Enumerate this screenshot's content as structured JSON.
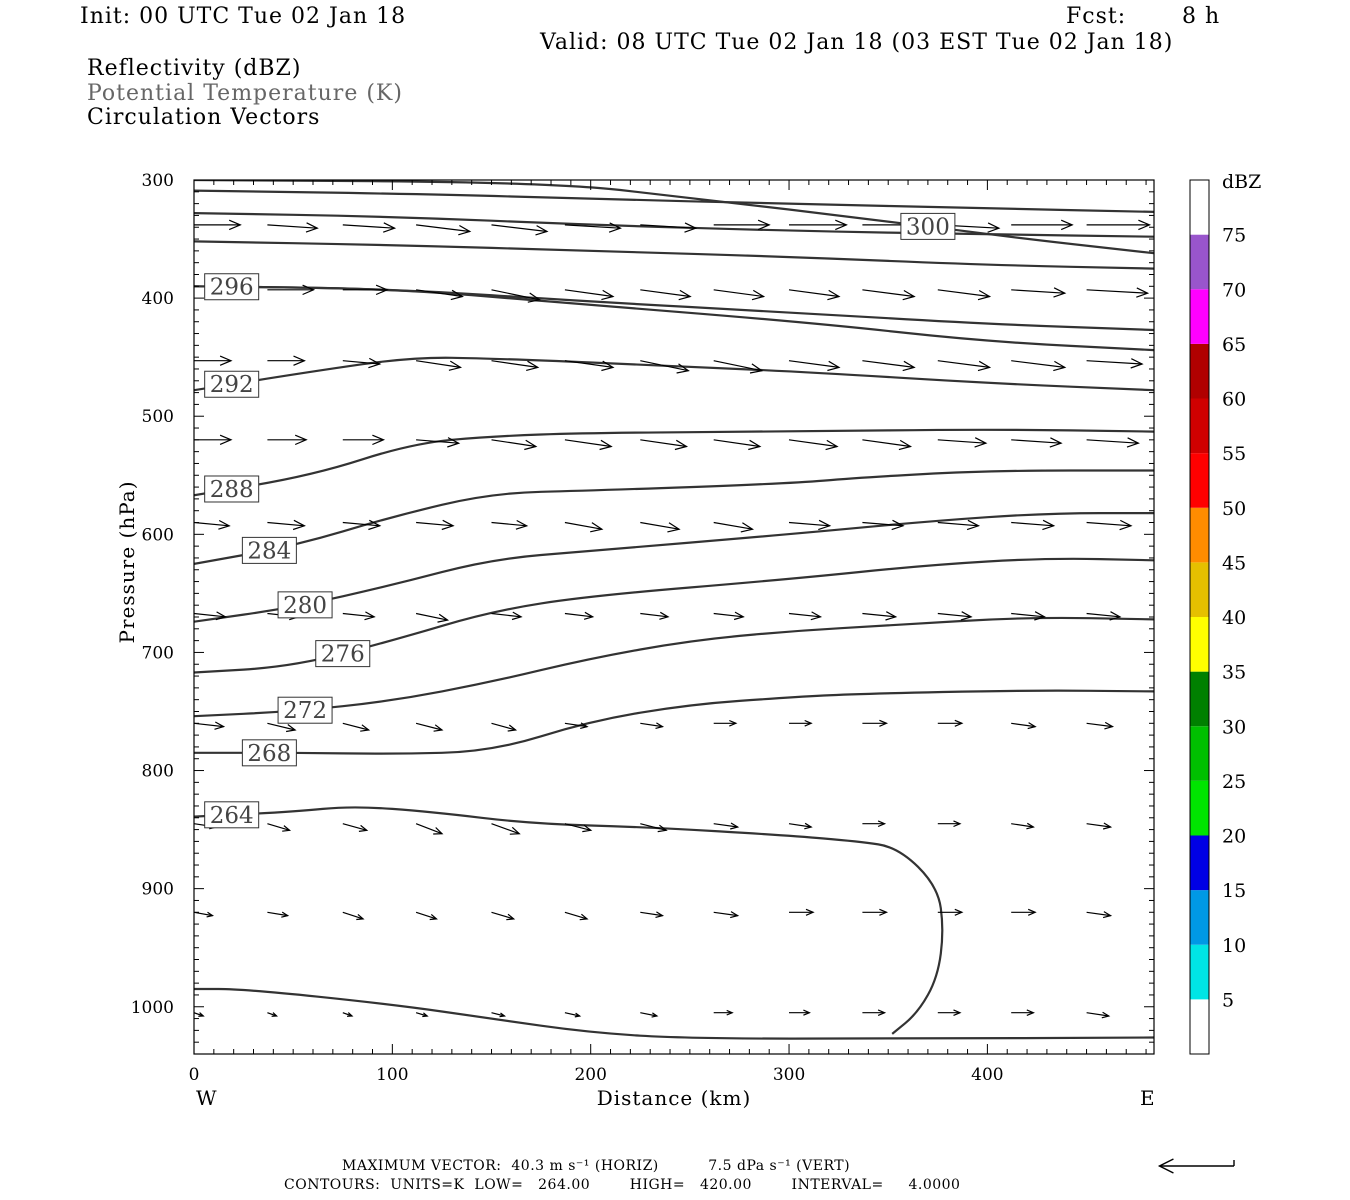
{
  "header": {
    "init": "Init: 00 UTC Tue 02 Jan 18",
    "fcst_label": "Fcst:",
    "fcst_value": "8 h",
    "valid": "Valid: 08 UTC Tue 02 Jan 18 (03 EST Tue 02 Jan 18)",
    "fields": [
      "Reflectivity (dBZ)",
      "Potential Temperature (K)",
      "Circulation Vectors"
    ]
  },
  "footer": {
    "max_vector": "MAXIMUM VECTOR:  40.3 m s⁻¹ (HORIZ)          7.5 dPa s⁻¹ (VERT)",
    "contours": "CONTOURS:  UNITS=K  LOW=   264.00        HIGH=   420.00        INTERVAL=     4.0000"
  },
  "colors": {
    "contour": "#333333",
    "arrow": "#000000",
    "axis": "#000000"
  },
  "chart_data": {
    "type": "contour_cross_section",
    "xlabel": "Distance (km)",
    "ylabel": "Pressure (hPa)",
    "xlim": [
      0,
      484
    ],
    "ylim": [
      1040,
      300
    ],
    "xticks": [
      "0",
      "100",
      "200",
      "300",
      "400"
    ],
    "xtick_values": [
      0,
      100,
      200,
      300,
      400
    ],
    "yticks": [
      "300",
      "400",
      "500",
      "600",
      "700",
      "800",
      "900",
      "1000"
    ],
    "ytick_values": [
      300,
      400,
      500,
      600,
      700,
      800,
      900,
      1000
    ],
    "x_end_labels": {
      "left": "W",
      "right": "E"
    },
    "colorbar": {
      "label": "dBZ",
      "levels": [
        "5",
        "10",
        "15",
        "20",
        "25",
        "30",
        "35",
        "40",
        "45",
        "50",
        "55",
        "60",
        "65",
        "70",
        "75"
      ],
      "colors": [
        "#ffffff",
        "#00e5e5",
        "#0099e5",
        "#0000e5",
        "#00e500",
        "#00c000",
        "#008000",
        "#ffff00",
        "#e5c000",
        "#ff8c00",
        "#ff0000",
        "#d00000",
        "#b00000",
        "#ff00ff",
        "#9955cc",
        "#ffffff"
      ]
    },
    "contours": [
      {
        "level": "",
        "points": [
          [
            0,
            309
          ],
          [
            120,
            312
          ],
          [
            200,
            316
          ],
          [
            300,
            320
          ],
          [
            400,
            324
          ],
          [
            484,
            327
          ]
        ]
      },
      {
        "level": "",
        "points": [
          [
            0,
            328
          ],
          [
            100,
            331
          ],
          [
            200,
            338
          ],
          [
            300,
            343
          ],
          [
            400,
            346
          ],
          [
            484,
            348
          ]
        ]
      },
      {
        "level": "",
        "points": [
          [
            0,
            352
          ],
          [
            100,
            355
          ],
          [
            200,
            360
          ],
          [
            300,
            365
          ],
          [
            400,
            372
          ],
          [
            484,
            375
          ]
        ]
      },
      {
        "level": "",
        "points": [
          [
            0,
            390
          ],
          [
            100,
            392
          ],
          [
            200,
            403
          ],
          [
            300,
            412
          ],
          [
            400,
            422
          ],
          [
            484,
            427
          ]
        ]
      },
      {
        "level": "300",
        "label_x": 370,
        "points": [
          [
            0,
            300
          ],
          [
            180,
            302
          ],
          [
            250,
            315
          ],
          [
            350,
            335
          ],
          [
            420,
            350
          ],
          [
            484,
            362
          ]
        ]
      },
      {
        "level": "296",
        "label_x": 19,
        "points": [
          [
            0,
            390
          ],
          [
            100,
            392
          ],
          [
            180,
            403
          ],
          [
            313,
            421
          ],
          [
            400,
            437
          ],
          [
            484,
            444
          ]
        ]
      },
      {
        "level": "292",
        "label_x": 19,
        "points": [
          [
            0,
            478
          ],
          [
            60,
            462
          ],
          [
            110,
            450
          ],
          [
            150,
            451
          ],
          [
            250,
            458
          ],
          [
            313,
            463
          ],
          [
            400,
            472
          ],
          [
            484,
            478
          ]
        ]
      },
      {
        "level": "288",
        "label_x": 19,
        "points": [
          [
            0,
            567
          ],
          [
            60,
            550
          ],
          [
            110,
            523
          ],
          [
            150,
            517
          ],
          [
            200,
            514
          ],
          [
            300,
            513
          ],
          [
            400,
            511
          ],
          [
            484,
            513
          ]
        ]
      },
      {
        "level": "284",
        "label_x": 38,
        "points": [
          [
            0,
            625
          ],
          [
            50,
            610
          ],
          [
            100,
            585
          ],
          [
            150,
            565
          ],
          [
            200,
            563
          ],
          [
            300,
            557
          ],
          [
            335,
            552
          ],
          [
            400,
            546
          ],
          [
            484,
            546
          ]
        ]
      },
      {
        "level": "280",
        "label_x": 56,
        "points": [
          [
            0,
            674
          ],
          [
            50,
            662
          ],
          [
            100,
            643
          ],
          [
            150,
            621
          ],
          [
            200,
            614
          ],
          [
            300,
            600
          ],
          [
            370,
            589
          ],
          [
            430,
            582
          ],
          [
            484,
            582
          ]
        ]
      },
      {
        "level": "276",
        "label_x": 75,
        "points": [
          [
            0,
            717
          ],
          [
            50,
            712
          ],
          [
            100,
            690
          ],
          [
            150,
            665
          ],
          [
            200,
            652
          ],
          [
            300,
            638
          ],
          [
            370,
            626
          ],
          [
            430,
            620
          ],
          [
            484,
            622
          ]
        ]
      },
      {
        "level": "272",
        "label_x": 56,
        "points": [
          [
            0,
            754
          ],
          [
            50,
            750
          ],
          [
            100,
            741
          ],
          [
            150,
            725
          ],
          [
            200,
            705
          ],
          [
            250,
            690
          ],
          [
            300,
            682
          ],
          [
            352,
            677
          ],
          [
            420,
            670
          ],
          [
            484,
            672
          ]
        ]
      },
      {
        "level": "268",
        "label_x": 38,
        "points": [
          [
            0,
            785
          ],
          [
            50,
            785
          ],
          [
            100,
            786
          ],
          [
            150,
            784
          ],
          [
            200,
            758
          ],
          [
            250,
            744
          ],
          [
            300,
            738
          ],
          [
            335,
            735
          ],
          [
            420,
            732
          ],
          [
            484,
            733
          ]
        ]
      },
      {
        "level": "264",
        "label_x": 19,
        "points": [
          [
            0,
            839
          ],
          [
            50,
            835
          ],
          [
            80,
            830
          ],
          [
            120,
            835
          ],
          [
            170,
            845
          ],
          [
            230,
            848
          ],
          [
            300,
            855
          ],
          [
            335,
            860
          ],
          [
            355,
            865
          ],
          [
            375,
            898
          ],
          [
            378,
            935
          ],
          [
            375,
            975
          ],
          [
            365,
            1005
          ],
          [
            352,
            1023
          ]
        ]
      },
      {
        "level": "",
        "points": [
          [
            0,
            985
          ],
          [
            25,
            985
          ],
          [
            100,
            998
          ],
          [
            150,
            1010
          ],
          [
            200,
            1022
          ],
          [
            250,
            1027
          ],
          [
            352,
            1027
          ],
          [
            484,
            1026
          ]
        ]
      }
    ],
    "vector_rows": [
      {
        "p": 338,
        "x": [
          0,
          37,
          75,
          112,
          150,
          187,
          225,
          262,
          300,
          337,
          375,
          412,
          450
        ],
        "u": [
          25,
          27,
          28,
          29,
          30,
          30,
          30,
          30,
          31,
          32,
          33,
          33,
          34
        ],
        "w": [
          0,
          -1,
          -1,
          -2,
          -2,
          -1,
          -1,
          0,
          0,
          0,
          -1,
          0,
          0
        ]
      },
      {
        "p": 393,
        "x": [
          37,
          75,
          112,
          150,
          187,
          225,
          262,
          300,
          337,
          375,
          412,
          450
        ],
        "u": [
          25,
          24,
          25,
          26,
          26,
          27,
          27,
          27,
          28,
          28,
          29,
          33
        ],
        "w": [
          0,
          0,
          -2,
          -3,
          -2,
          -2,
          -2,
          -2,
          -2,
          -2,
          -1,
          -1
        ]
      },
      {
        "p": 453,
        "x": [
          0,
          37,
          75,
          112,
          150,
          187,
          225,
          262,
          300,
          337,
          375,
          412,
          450
        ],
        "u": [
          20,
          20,
          20,
          24,
          25,
          26,
          26,
          26,
          27,
          28,
          28,
          29,
          30
        ],
        "w": [
          0,
          0,
          -1,
          -2,
          -2,
          -2,
          -3,
          -3,
          -2,
          -2,
          -2,
          -2,
          -1
        ]
      },
      {
        "p": 520,
        "x": [
          0,
          37,
          75,
          112,
          150,
          187,
          225,
          262,
          300,
          337,
          375,
          412,
          450
        ],
        "u": [
          20,
          21,
          22,
          23,
          24,
          25,
          25,
          25,
          26,
          26,
          26,
          27,
          28
        ],
        "w": [
          0,
          0,
          0,
          -1,
          -2,
          -2,
          -2,
          -2,
          -2,
          -2,
          -1,
          -1,
          -1
        ]
      },
      {
        "p": 590,
        "x": [
          0,
          37,
          75,
          112,
          150,
          187,
          225,
          262,
          300,
          337,
          375,
          412,
          450
        ],
        "u": [
          19,
          20,
          20,
          20,
          19,
          20,
          21,
          21,
          22,
          22,
          22,
          23,
          24
        ],
        "w": [
          -1,
          -1,
          -1,
          -1,
          -1,
          -2,
          -2,
          -2,
          -1,
          -1,
          -1,
          -1,
          -1
        ]
      },
      {
        "p": 667,
        "x": [
          0,
          37,
          75,
          112,
          150,
          187,
          225,
          262,
          300,
          337,
          375,
          412,
          450
        ],
        "u": [
          17,
          17,
          17,
          17,
          16,
          15,
          15,
          16,
          17,
          18,
          18,
          18,
          18
        ],
        "w": [
          -1,
          -1,
          -1,
          -2,
          -1,
          -1,
          -1,
          -1,
          -1,
          -1,
          -1,
          -1,
          -1
        ]
      },
      {
        "p": 760,
        "x": [
          0,
          37,
          75,
          112,
          150,
          187,
          225,
          262,
          300,
          337,
          375,
          412,
          450
        ],
        "u": [
          16,
          15,
          14,
          14,
          13,
          12,
          12,
          12,
          12,
          13,
          13,
          13,
          14
        ],
        "w": [
          -1,
          -2,
          -2,
          -2,
          -2,
          -1,
          -1,
          0,
          0,
          0,
          0,
          -1,
          -1
        ]
      },
      {
        "p": 845,
        "x": [
          0,
          37,
          75,
          112,
          150,
          187,
          225,
          262,
          300,
          337,
          375,
          412,
          450
        ],
        "u": [
          12,
          12,
          13,
          14,
          15,
          14,
          14,
          13,
          12,
          12,
          12,
          12,
          13
        ],
        "w": [
          -1,
          -2,
          -2,
          -3,
          -3,
          -2,
          -2,
          -1,
          -1,
          0,
          0,
          -1,
          -1
        ]
      },
      {
        "p": 920,
        "x": [
          0,
          37,
          75,
          112,
          150,
          187,
          225,
          262,
          300,
          337,
          375,
          412,
          450
        ],
        "u": [
          10,
          11,
          11,
          11,
          12,
          12,
          12,
          13,
          13,
          13,
          13,
          13,
          13
        ],
        "w": [
          -1,
          -1,
          -2,
          -2,
          -2,
          -2,
          -1,
          -1,
          0,
          0,
          0,
          0,
          -1
        ]
      },
      {
        "p": 1005,
        "x": [
          0,
          37,
          75,
          112,
          150,
          187,
          225,
          262,
          300,
          337,
          375,
          412,
          450
        ],
        "u": [
          5,
          5,
          5,
          6,
          7,
          8,
          9,
          10,
          11,
          12,
          12,
          12,
          12
        ],
        "w": [
          -1,
          -1,
          -1,
          -1,
          -1,
          -1,
          -1,
          0,
          0,
          0,
          0,
          0,
          -1
        ]
      }
    ],
    "reference_vector": {
      "u": -40.3,
      "w": 0
    }
  }
}
